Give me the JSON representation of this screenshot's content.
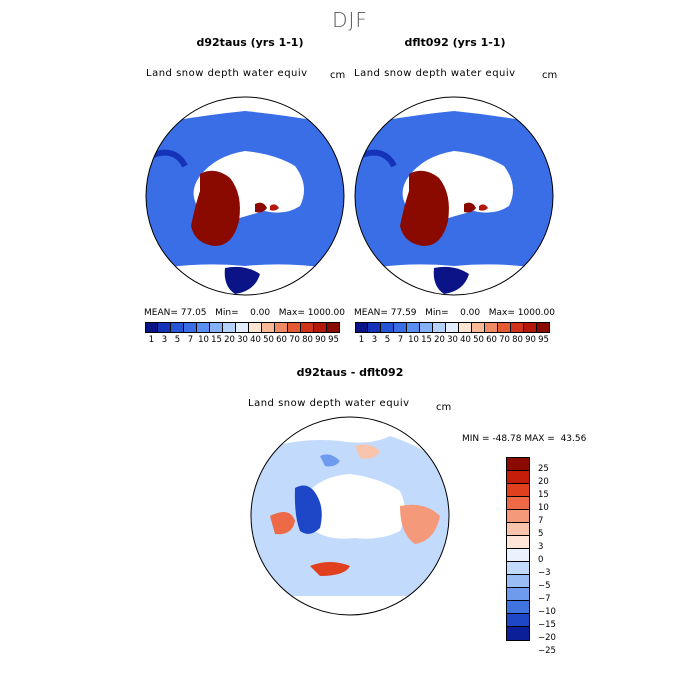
{
  "figure": {
    "title": "DJF",
    "unit": "cm"
  },
  "colors": {
    "land_blue": "#3a6ee6",
    "deep_red": "#8b0a00",
    "navy": "#0a1487",
    "ocean": "#ffffff"
  },
  "chart_data": [
    {
      "type": "heatmap",
      "name": "left-map",
      "title": "d92taus (yrs 1-1)",
      "subtitle": "Land snow depth water equiv",
      "unit": "cm",
      "stats": {
        "mean_label": "MEAN=",
        "mean": "77.05",
        "min_label": "Min=",
        "min": "0.00",
        "max_label": "Max=",
        "max": "1000.00"
      },
      "colorbar": {
        "colors": [
          "#0a1487",
          "#1533b8",
          "#2656d6",
          "#3a6ee6",
          "#5a8ef0",
          "#86b0f6",
          "#b4d2fb",
          "#e2eefd",
          "#fde5d2",
          "#f9b996",
          "#f08a64",
          "#e55a32",
          "#d1321a",
          "#b3180a",
          "#8b0a00"
        ],
        "labels": [
          "1",
          "3",
          "5",
          "7",
          "10",
          "15",
          "20",
          "30",
          "40",
          "50",
          "60",
          "70",
          "80",
          "90",
          "95"
        ]
      }
    },
    {
      "type": "heatmap",
      "name": "right-map",
      "title": "dflt092 (yrs 1-1)",
      "subtitle": "Land snow depth water equiv",
      "unit": "cm",
      "stats": {
        "mean_label": "MEAN=",
        "mean": "77.59",
        "min_label": "Min=",
        "min": "0.00",
        "max_label": "Max=",
        "max": "1000.00"
      },
      "colorbar": {
        "colors": [
          "#0a1487",
          "#1533b8",
          "#2656d6",
          "#3a6ee6",
          "#5a8ef0",
          "#86b0f6",
          "#b4d2fb",
          "#e2eefd",
          "#fde5d2",
          "#f9b996",
          "#f08a64",
          "#e55a32",
          "#d1321a",
          "#b3180a",
          "#8b0a00"
        ],
        "labels": [
          "1",
          "3",
          "5",
          "7",
          "10",
          "15",
          "20",
          "30",
          "40",
          "50",
          "60",
          "70",
          "80",
          "90",
          "95"
        ]
      }
    },
    {
      "type": "heatmap",
      "name": "diff-map",
      "title": "d92taus - dflt092",
      "subtitle": "Land snow depth water equiv",
      "unit": "cm",
      "stats": {
        "min_label": "MIN =",
        "min": "-48.78",
        "max_label": "MAX =",
        "max": "43.56"
      },
      "colorbar": {
        "colors": [
          "#8b0a00",
          "#c41e0a",
          "#e0401e",
          "#ee6a46",
          "#f4997a",
          "#f9c4ac",
          "#fde6d8",
          "#eaf2fd",
          "#c2dafb",
          "#99bdf5",
          "#6f9bee",
          "#3f73e0",
          "#1e47c8",
          "#0b1f99"
        ],
        "labels": [
          "25",
          "20",
          "15",
          "10",
          "7",
          "5",
          "3",
          "0",
          "−3",
          "−5",
          "−7",
          "−10",
          "−15",
          "−20",
          "−25"
        ]
      }
    }
  ]
}
